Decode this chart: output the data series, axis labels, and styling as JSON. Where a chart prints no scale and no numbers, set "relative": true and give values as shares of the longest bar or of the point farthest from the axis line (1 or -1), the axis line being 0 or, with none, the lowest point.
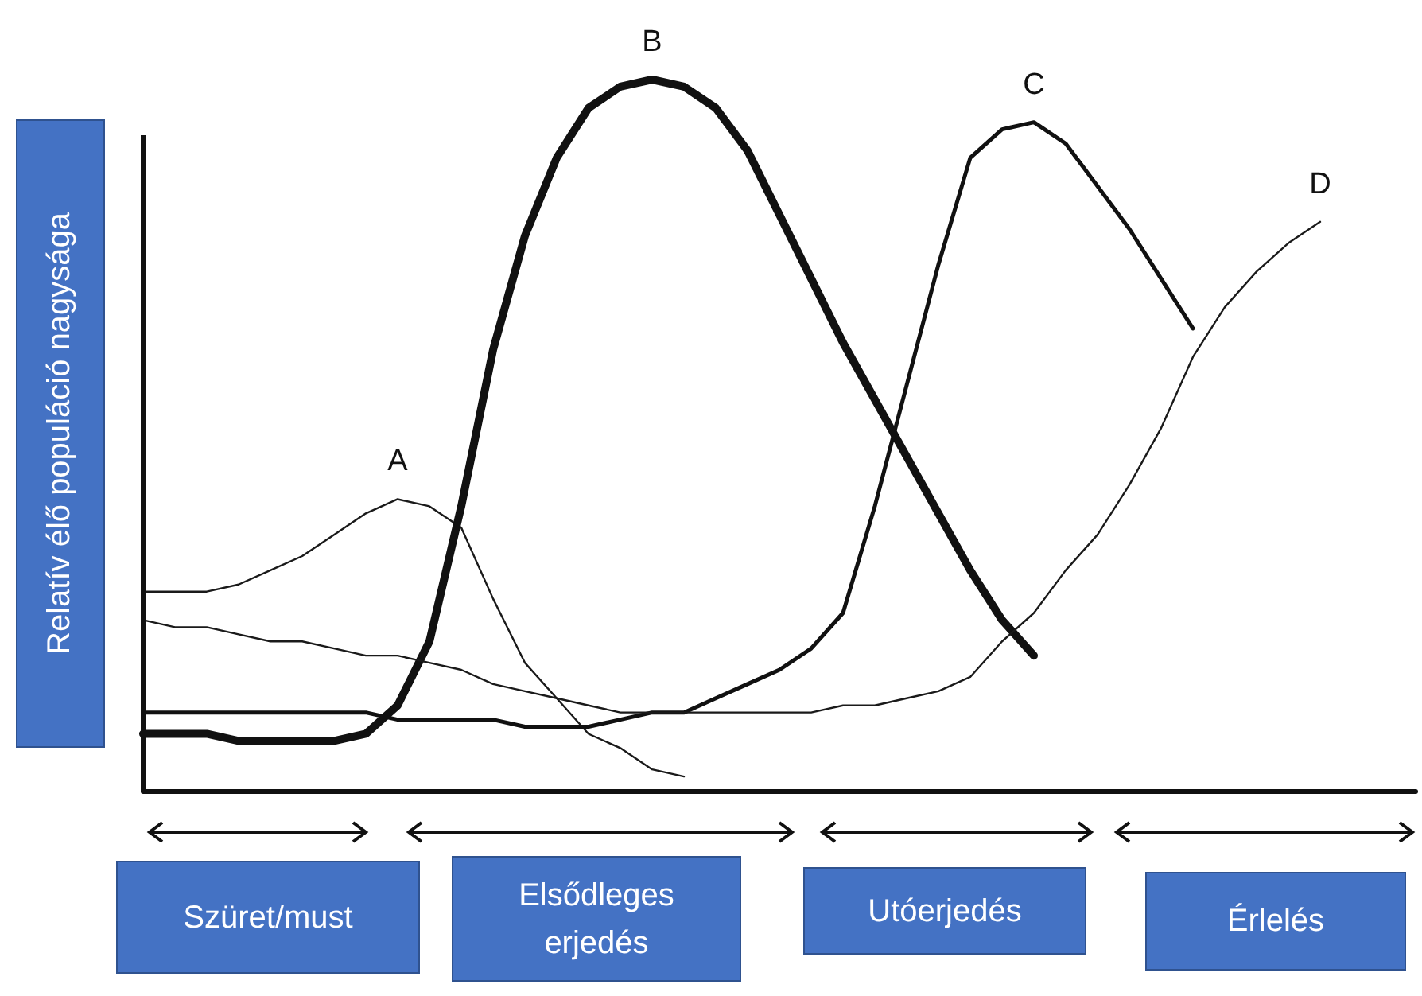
{
  "chart_data": {
    "type": "line",
    "relative": true,
    "ylabel": "Relatív élő populáció nagysága",
    "categories": [
      null,
      null,
      null,
      null,
      null,
      null,
      null,
      null,
      null,
      null,
      null,
      null,
      null,
      null,
      null,
      null,
      null,
      null,
      null,
      null,
      null,
      null,
      null,
      null,
      null,
      null,
      null,
      null,
      null,
      null,
      null,
      null,
      null,
      null,
      null,
      null,
      null,
      null,
      null,
      null,
      null
    ],
    "series": [
      {
        "name": "A",
        "color": "#1a1a1a",
        "values": [
          0.28,
          0.28,
          0.28,
          0.29,
          0.31,
          0.33,
          0.36,
          0.39,
          0.41,
          0.4,
          0.37,
          0.27,
          0.18,
          0.13,
          0.08,
          0.06,
          0.03,
          0.02,
          null,
          null,
          null,
          null,
          null,
          null,
          null,
          null,
          null,
          null,
          null,
          null,
          null,
          null,
          null,
          null,
          null,
          null,
          null,
          null,
          null,
          null,
          null
        ]
      },
      {
        "name": "B",
        "color": "#111111",
        "values": [
          0.08,
          0.08,
          0.08,
          0.07,
          0.07,
          0.07,
          0.07,
          0.08,
          0.12,
          0.21,
          0.4,
          0.62,
          0.78,
          0.89,
          0.96,
          0.99,
          1.0,
          0.99,
          0.96,
          0.9,
          0.81,
          0.72,
          0.63,
          0.55,
          0.47,
          0.39,
          0.31,
          0.24,
          0.19,
          null,
          null,
          null,
          null,
          null,
          null,
          null,
          null,
          null,
          null,
          null,
          null
        ]
      },
      {
        "name": "C",
        "color": "#111111",
        "values": [
          0.11,
          0.11,
          0.11,
          0.11,
          0.11,
          0.11,
          0.11,
          0.11,
          0.1,
          0.1,
          0.1,
          0.1,
          0.09,
          0.09,
          0.09,
          0.1,
          0.11,
          0.11,
          0.13,
          0.15,
          0.17,
          0.2,
          0.25,
          0.4,
          0.57,
          0.74,
          0.89,
          0.93,
          0.94,
          0.91,
          0.85,
          0.79,
          0.72,
          0.65,
          null,
          null,
          null,
          null,
          null,
          null,
          null
        ]
      },
      {
        "name": "D",
        "color": "#1a1a1a",
        "values": [
          0.24,
          0.23,
          0.23,
          0.22,
          0.21,
          0.21,
          0.2,
          0.19,
          0.19,
          0.18,
          0.17,
          0.15,
          0.14,
          0.13,
          0.12,
          0.11,
          0.11,
          0.11,
          0.11,
          0.11,
          0.11,
          0.11,
          0.12,
          0.12,
          0.13,
          0.14,
          0.16,
          0.21,
          0.25,
          0.31,
          0.36,
          0.43,
          0.51,
          0.61,
          0.68,
          0.73,
          0.77,
          0.8,
          null,
          null,
          null
        ]
      }
    ],
    "annotations": [
      "Szüret/must",
      "Elsődleges erjedés",
      "Utóerjedés",
      "Érlelés"
    ]
  }
}
